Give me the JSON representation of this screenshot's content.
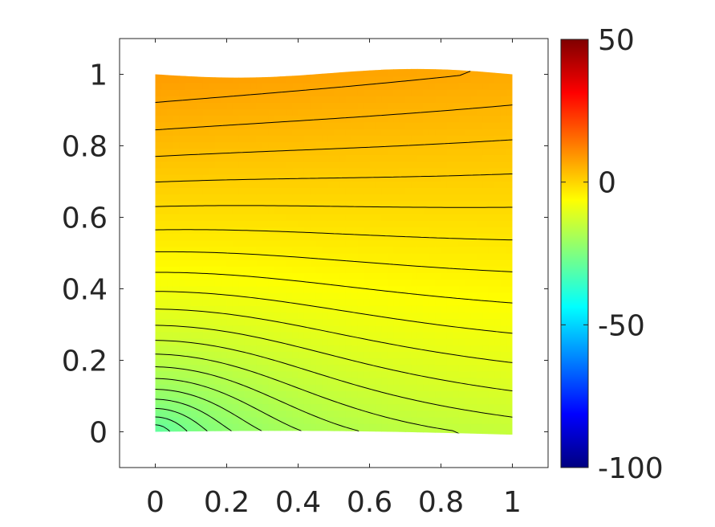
{
  "chart_data": {
    "type": "heatmap",
    "subtype": "filled-contour",
    "title": "",
    "xlabel": "",
    "ylabel": "",
    "xlim": [
      -0.1,
      1.1
    ],
    "ylim": [
      -0.1,
      1.1
    ],
    "x_ticks": [
      "0",
      "0.2",
      "0.4",
      "0.6",
      "0.8",
      "1"
    ],
    "y_ticks": [
      "0",
      "0.2",
      "0.4",
      "0.6",
      "0.8",
      "1"
    ],
    "x_tick_values": [
      0,
      0.2,
      0.4,
      0.6,
      0.8,
      1
    ],
    "y_tick_values": [
      0,
      0.2,
      0.4,
      0.6,
      0.8,
      1
    ],
    "colormap": "jet",
    "colorbar": {
      "range": [
        -100,
        50
      ],
      "ticks": [
        "50",
        "0",
        "-50",
        "-100"
      ],
      "tick_values": [
        50,
        0,
        -50,
        -100
      ]
    },
    "domain": {
      "x_range": [
        0,
        1
      ],
      "y_range": [
        0,
        1
      ]
    },
    "field": {
      "min_value": -25,
      "min_location": [
        0,
        0
      ],
      "max_value": 9,
      "max_location": "top edge (y = 1)",
      "contour_count": 20,
      "contour_color": "#000000"
    },
    "grid": false,
    "box": true
  }
}
